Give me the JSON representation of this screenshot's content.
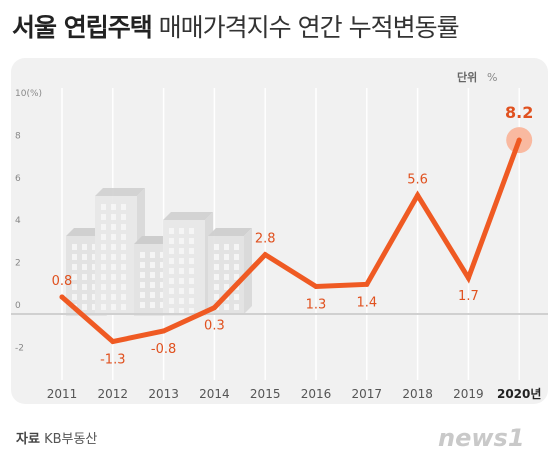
{
  "title": {
    "bold": "서울 연립주택",
    "rest": "매매가격지수 연간 누적변동률"
  },
  "unit_label": "단위",
  "unit_symbol": "%",
  "source_label": "자료",
  "source": "KB부동산",
  "logo_text": "news1",
  "colors": {
    "line": "#ef5a23",
    "label": "#e0511f",
    "highlight": "#f9b9a0",
    "panel": "#f1f1f1"
  },
  "chart_data": {
    "type": "line",
    "categories": [
      "2011",
      "2012",
      "2013",
      "2014",
      "2015",
      "2016",
      "2017",
      "2018",
      "2019",
      "2020년"
    ],
    "series": [
      {
        "values": [
          0.8,
          -1.3,
          -0.8,
          0.3,
          2.8,
          1.3,
          1.4,
          5.6,
          1.7,
          8.2
        ]
      }
    ],
    "data_labels": [
      "0.8",
      "-1.3",
      "-0.8",
      "0.3",
      "2.8",
      "1.3",
      "1.4",
      "5.6",
      "1.7",
      "8.2"
    ],
    "y_ticks": [
      {
        "value": 10,
        "label": "10(%)"
      },
      {
        "value": 8,
        "label": "8"
      },
      {
        "value": 6,
        "label": "6"
      },
      {
        "value": 4,
        "label": "4"
      },
      {
        "value": 2,
        "label": "2"
      },
      {
        "value": 0,
        "label": "0"
      },
      {
        "value": -2,
        "label": "-2"
      }
    ],
    "ylim": [
      -2.5,
      10
    ],
    "xlabel": "",
    "ylabel": "",
    "grid": "vertical",
    "highlight": "2020년"
  }
}
